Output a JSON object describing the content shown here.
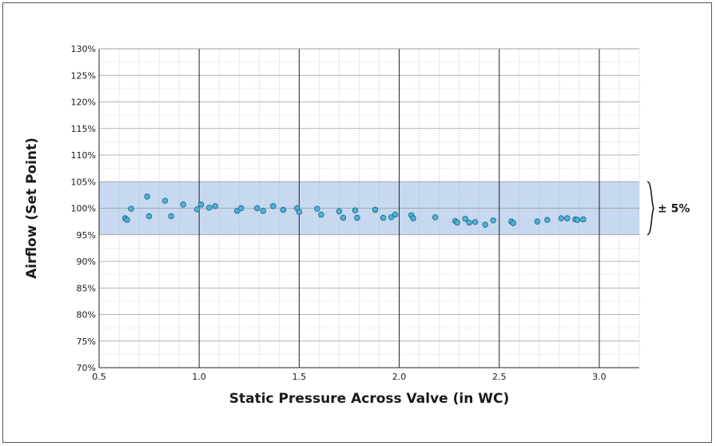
{
  "chart_data": {
    "type": "scatter",
    "title": "",
    "xlabel": "Static Pressure Across Valve (in WC)",
    "ylabel": "Airflow (Set Point)",
    "xlim": [
      0.5,
      3.2
    ],
    "ylim": [
      70,
      130
    ],
    "x_ticks": [
      "0.5",
      "1.0",
      "1.5",
      "2.0",
      "2.5",
      "3.0"
    ],
    "x_tick_values": [
      0.5,
      1.0,
      1.5,
      2.0,
      2.5,
      3.0
    ],
    "y_ticks": [
      "70%",
      "75%",
      "80%",
      "85%",
      "90%",
      "95%",
      "100%",
      "105%",
      "110%",
      "115%",
      "120%",
      "125%",
      "130%"
    ],
    "y_tick_values": [
      70,
      75,
      80,
      85,
      90,
      95,
      100,
      105,
      110,
      115,
      120,
      125,
      130
    ],
    "grid": true,
    "band": {
      "low": 95,
      "high": 105,
      "label": "± 5%",
      "color": "#c6d9f0"
    },
    "point_color": "#4ab3d8",
    "series": [
      {
        "points": [
          [
            0.63,
            98.1
          ],
          [
            0.64,
            97.8
          ],
          [
            0.66,
            99.9
          ],
          [
            0.74,
            102.2
          ],
          [
            0.75,
            98.5
          ],
          [
            0.83,
            101.4
          ],
          [
            0.86,
            98.5
          ],
          [
            0.92,
            100.7
          ],
          [
            0.99,
            99.8
          ],
          [
            1.01,
            100.7
          ],
          [
            1.05,
            100.1
          ],
          [
            1.08,
            100.4
          ],
          [
            1.19,
            99.5
          ],
          [
            1.21,
            100.0
          ],
          [
            1.29,
            100.0
          ],
          [
            1.32,
            99.5
          ],
          [
            1.37,
            100.4
          ],
          [
            1.42,
            99.7
          ],
          [
            1.49,
            100.0
          ],
          [
            1.5,
            99.3
          ],
          [
            1.59,
            99.9
          ],
          [
            1.61,
            98.8
          ],
          [
            1.7,
            99.4
          ],
          [
            1.72,
            98.2
          ],
          [
            1.78,
            99.6
          ],
          [
            1.79,
            98.2
          ],
          [
            1.88,
            99.7
          ],
          [
            1.92,
            98.2
          ],
          [
            1.96,
            98.3
          ],
          [
            1.98,
            98.8
          ],
          [
            2.06,
            98.7
          ],
          [
            2.07,
            98.1
          ],
          [
            2.18,
            98.3
          ],
          [
            2.28,
            97.6
          ],
          [
            2.29,
            97.3
          ],
          [
            2.33,
            98.0
          ],
          [
            2.35,
            97.3
          ],
          [
            2.38,
            97.4
          ],
          [
            2.43,
            96.9
          ],
          [
            2.47,
            97.7
          ],
          [
            2.56,
            97.5
          ],
          [
            2.57,
            97.2
          ],
          [
            2.69,
            97.5
          ],
          [
            2.74,
            97.8
          ],
          [
            2.81,
            98.1
          ],
          [
            2.84,
            98.1
          ],
          [
            2.88,
            97.9
          ],
          [
            2.89,
            97.8
          ],
          [
            2.92,
            97.9
          ]
        ]
      }
    ]
  }
}
